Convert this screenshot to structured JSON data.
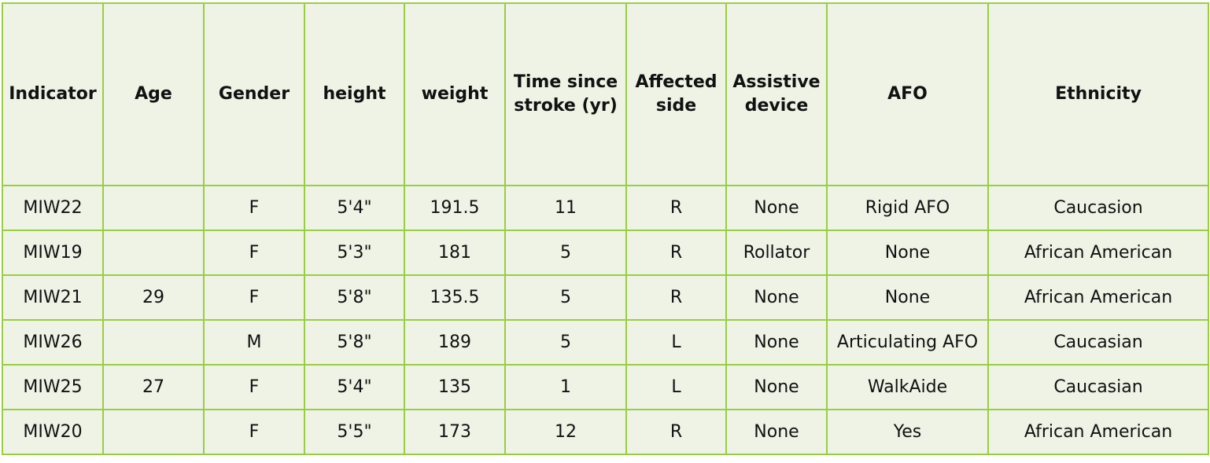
{
  "table": {
    "headers": [
      "Indicator",
      "Age",
      "Gender",
      "height",
      "weight",
      "Time since\nstroke (yr)",
      "Affected\nside",
      "Assistive\ndevice",
      "AFO",
      "Ethnicity"
    ],
    "rows": [
      [
        "MIW22",
        "",
        "F",
        "5'4\"",
        "191.5",
        "11",
        "R",
        "None",
        "Rigid AFO",
        "Caucasion"
      ],
      [
        "MIW19",
        "",
        "F",
        "5'3\"",
        "181",
        "5",
        "R",
        "Rollator",
        "None",
        "African American"
      ],
      [
        "MIW21",
        "29",
        "F",
        "5'8\"",
        "135.5",
        "5",
        "R",
        "None",
        "None",
        "African American"
      ],
      [
        "MIW26",
        "",
        "M",
        "5'8\"",
        "189",
        "5",
        "L",
        "None",
        "Articulating AFO",
        "Caucasian"
      ],
      [
        "MIW25",
        "27",
        "F",
        "5'4\"",
        "135",
        "1",
        "L",
        "None",
        "WalkAide",
        "Caucasian"
      ],
      [
        "MIW20",
        "",
        "F",
        "5'5\"",
        "173",
        "12",
        "R",
        "None",
        "Yes",
        "African American"
      ]
    ]
  },
  "colors": {
    "border": "#9acd44",
    "background": "#eef3e6"
  }
}
